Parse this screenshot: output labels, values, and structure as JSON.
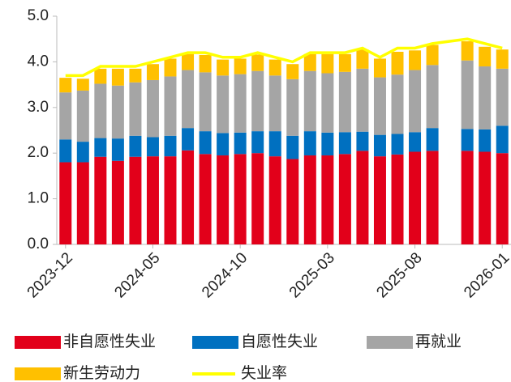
{
  "chart_data": {
    "type": "bar",
    "stacked": true,
    "categories": [
      "2023-12",
      null,
      null,
      null,
      null,
      "2024-05",
      null,
      null,
      null,
      null,
      "2024-10",
      null,
      null,
      null,
      null,
      "2025-03",
      null,
      null,
      null,
      null,
      "2025-08",
      null,
      null,
      null,
      null,
      "2026-01"
    ],
    "series": [
      {
        "name": "非自愿性失业",
        "color": "#e2001a",
        "values": [
          1.8,
          1.8,
          1.92,
          1.83,
          1.92,
          1.93,
          1.93,
          2.06,
          1.98,
          1.95,
          1.98,
          2.0,
          1.93,
          1.87,
          1.95,
          1.95,
          1.98,
          2.05,
          1.93,
          1.97,
          2.03,
          2.05,
          null,
          2.05,
          2.03,
          2.0
        ]
      },
      {
        "name": "自愿性失业",
        "color": "#0070c0",
        "values": [
          0.5,
          0.45,
          0.41,
          0.49,
          0.46,
          0.42,
          0.45,
          0.49,
          0.5,
          0.49,
          0.47,
          0.48,
          0.55,
          0.51,
          0.53,
          0.5,
          0.48,
          0.42,
          0.47,
          0.45,
          0.43,
          0.5,
          null,
          0.48,
          0.49,
          0.6
        ]
      },
      {
        "name": "再就业",
        "color": "#a5a5a5",
        "values": [
          1.03,
          1.12,
          1.19,
          1.16,
          1.17,
          1.25,
          1.3,
          1.27,
          1.29,
          1.26,
          1.28,
          1.32,
          1.22,
          1.24,
          1.32,
          1.3,
          1.32,
          1.38,
          1.26,
          1.3,
          1.36,
          1.38,
          null,
          1.5,
          1.38,
          1.25
        ]
      },
      {
        "name": "新生劳动力",
        "color": "#ffc000",
        "values": [
          0.32,
          0.26,
          0.33,
          0.37,
          0.3,
          0.35,
          0.39,
          0.35,
          0.38,
          0.35,
          0.34,
          0.36,
          0.35,
          0.33,
          0.37,
          0.42,
          0.39,
          0.42,
          0.41,
          0.5,
          0.43,
          0.44,
          null,
          0.42,
          0.43,
          0.42
        ]
      },
      {
        "name": "失业率",
        "color": "#ffff00",
        "type": "line",
        "values": [
          3.7,
          3.7,
          3.9,
          3.9,
          3.9,
          4.0,
          4.1,
          4.2,
          4.2,
          4.1,
          4.1,
          4.2,
          4.1,
          4.0,
          4.2,
          4.2,
          4.2,
          4.3,
          4.1,
          4.3,
          4.3,
          4.4,
          4.45,
          4.5,
          4.4,
          4.3
        ]
      }
    ],
    "ylim": [
      0,
      5
    ],
    "yticks": [
      {
        "value": 0,
        "label": "0.0"
      },
      {
        "value": 1,
        "label": "1.0"
      },
      {
        "value": 2,
        "label": "2.0"
      },
      {
        "value": 3,
        "label": "3.0"
      },
      {
        "value": 4,
        "label": "4.0"
      },
      {
        "value": 5,
        "label": "5.0"
      }
    ],
    "grid": false,
    "legend": "bottom"
  }
}
